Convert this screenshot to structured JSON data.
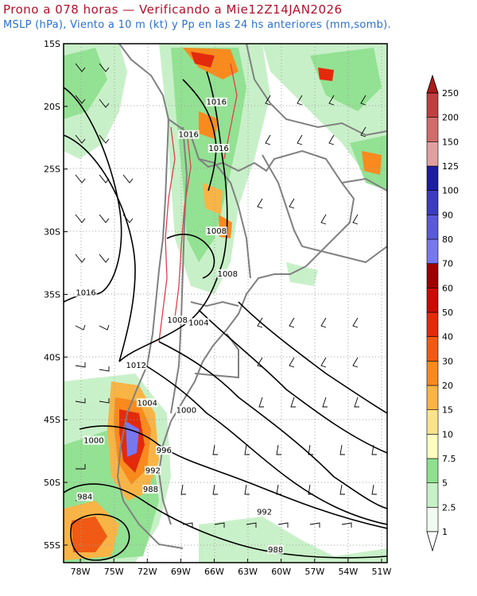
{
  "header": {
    "line1": "Prono a 078 horas — Verificando a Mie12Z14JAN2026",
    "line2": "MSLP (hPa), Viento a 10 m (kt) y Pp en las 24 hs anteriores (mm,somb)."
  },
  "colors": {
    "title1": "#b3102a",
    "title2": "#2a6fd6",
    "isobar": "#000000",
    "border": "#808080",
    "terrain_contour": "#e0404a"
  },
  "map": {
    "lat_labels": [
      "15S",
      "20S",
      "25S",
      "30S",
      "35S",
      "40S",
      "45S",
      "50S",
      "55S"
    ],
    "lon_labels": [
      "78W",
      "75W",
      "72W",
      "69W",
      "66W",
      "63W",
      "60W",
      "57W",
      "54W",
      "51W"
    ],
    "isobar_labels": [
      {
        "text": "1016",
        "lat": 19.8,
        "lon": 65.8
      },
      {
        "text": "1016",
        "lat": 22.4,
        "lon": 68.3
      },
      {
        "text": "1016",
        "lat": 23.5,
        "lon": 65.6
      },
      {
        "text": "1008",
        "lat": 30.1,
        "lon": 65.8
      },
      {
        "text": "1008",
        "lat": 33.5,
        "lon": 64.8
      },
      {
        "text": "1016",
        "lat": 35.0,
        "lon": 77.5
      },
      {
        "text": "1008",
        "lat": 37.2,
        "lon": 69.3
      },
      {
        "text": "1004",
        "lat": 37.4,
        "lon": 67.4
      },
      {
        "text": "1012",
        "lat": 40.8,
        "lon": 73.0
      },
      {
        "text": "1004",
        "lat": 43.8,
        "lon": 72.0
      },
      {
        "text": "1000",
        "lat": 44.4,
        "lon": 68.5
      },
      {
        "text": "1000",
        "lat": 46.8,
        "lon": 76.8
      },
      {
        "text": "996",
        "lat": 47.6,
        "lon": 70.5
      },
      {
        "text": "992",
        "lat": 49.2,
        "lon": 71.5
      },
      {
        "text": "988",
        "lat": 50.7,
        "lon": 71.7
      },
      {
        "text": "984",
        "lat": 51.3,
        "lon": 77.6
      },
      {
        "text": "992",
        "lat": 52.5,
        "lon": 61.5
      },
      {
        "text": "988",
        "lat": 55.5,
        "lon": 60.5
      }
    ]
  },
  "colorbar": {
    "labels": [
      "1",
      "2.5",
      "5",
      "7.5",
      "10",
      "15",
      "20",
      "30",
      "40",
      "50",
      "60",
      "70",
      "80",
      "90",
      "100",
      "125",
      "150",
      "200",
      "250"
    ],
    "colors": [
      "#f0fcf0",
      "#c6f0c6",
      "#8ee08e",
      "#fdfdbe",
      "#fbe38c",
      "#f9b446",
      "#f88a1e",
      "#f05a14",
      "#e32a0c",
      "#cc0a06",
      "#9e0000",
      "#7878ee",
      "#5a5ad8",
      "#3c3cbe",
      "#1e1ea0",
      "#e0a0a0",
      "#d06c6c",
      "#c04040",
      "#aa1a1a"
    ]
  }
}
